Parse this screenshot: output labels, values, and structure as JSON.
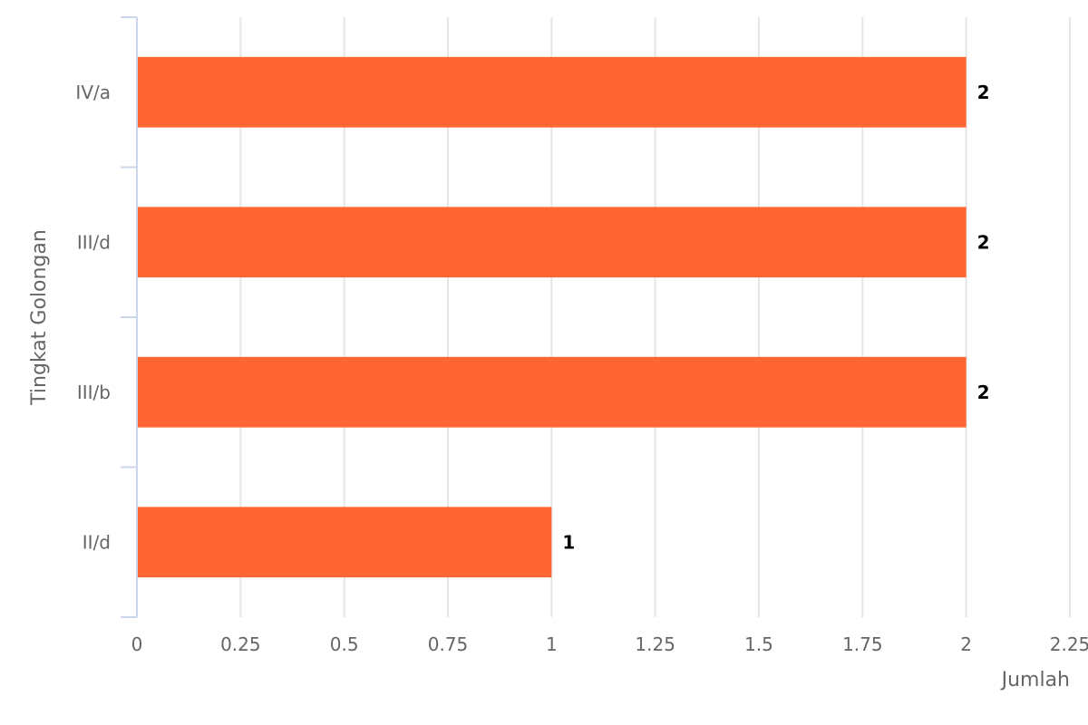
{
  "chart_data": {
    "type": "bar",
    "orientation": "horizontal",
    "categories": [
      "IV/a",
      "III/d",
      "III/b",
      "II/d"
    ],
    "values": [
      2,
      2,
      2,
      1
    ],
    "xlabel": "Jumlah",
    "ylabel": "Tingkat Golongan",
    "xlim": [
      0,
      2.25
    ],
    "xticks": [
      "0",
      "0.25",
      "0.5",
      "0.75",
      "1",
      "1.25",
      "1.5",
      "1.75",
      "2",
      "2.25"
    ],
    "grid": true,
    "bar_color": "#ff6633",
    "data_labels": true
  }
}
